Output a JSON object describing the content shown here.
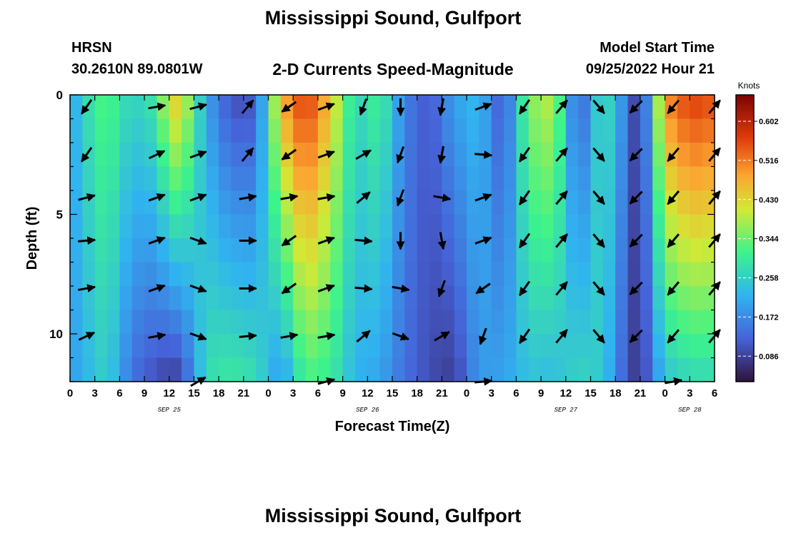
{
  "title": "Mississippi Sound, Gulfport",
  "station": "HRSN",
  "coords": "30.2610N  89.0801W",
  "subtitle": "2-D Currents Speed-Magnitude",
  "model_start_label": "Model Start Time",
  "model_start_value": "09/25/2022 Hour 21",
  "footer_title": "Mississippi Sound, Gulfport",
  "chart_data": {
    "type": "heatmap",
    "xlabel": "Forecast Time(Z)",
    "ylabel": "Depth (ft)",
    "x_ticks": [
      "0",
      "3",
      "6",
      "9",
      "12",
      "15",
      "18",
      "21",
      "0",
      "3",
      "6",
      "9",
      "12",
      "15",
      "18",
      "21",
      "0",
      "3",
      "6",
      "9",
      "12",
      "15",
      "18",
      "21",
      "0",
      "3",
      "6"
    ],
    "date_labels": [
      {
        "label": "SEP 25",
        "tick_index": 4
      },
      {
        "label": "SEP 26",
        "tick_index": 12
      },
      {
        "label": "SEP 27",
        "tick_index": 20
      },
      {
        "label": "SEP 28",
        "tick_index": 25
      }
    ],
    "y_ticks": [
      "0",
      "5",
      "10"
    ],
    "ylim": [
      0,
      12
    ],
    "y_inverted": true,
    "colorbar": {
      "unit": "Knots",
      "range": [
        0.03,
        0.66
      ],
      "ticks": [
        "0.602",
        "0.516",
        "0.430",
        "0.344",
        "0.258",
        "0.172",
        "0.086"
      ],
      "tick_values": [
        0.602,
        0.516,
        0.43,
        0.344,
        0.258,
        0.172,
        0.086
      ]
    },
    "colors": {
      "scale": [
        "#30123b",
        "#3e9bfe",
        "#46f884",
        "#e1dd37",
        "#f05b12",
        "#7a0403"
      ]
    },
    "time_step_hours": 1.5,
    "depths_ft": [
      0,
      1,
      2,
      3,
      4,
      5,
      6,
      7,
      8,
      9,
      10,
      11,
      12
    ],
    "column_speed_profiles": [
      {
        "hour": 0,
        "surface": 0.2,
        "bottom": 0.19
      },
      {
        "hour": 3,
        "surface": 0.31,
        "bottom": 0.24
      },
      {
        "hour": 4.5,
        "surface": 0.33,
        "bottom": 0.26
      },
      {
        "hour": 7.5,
        "surface": 0.26,
        "bottom": 0.14
      },
      {
        "hour": 10.5,
        "surface": 0.3,
        "bottom": 0.1
      },
      {
        "hour": 12,
        "surface": 0.44,
        "bottom": 0.08
      },
      {
        "hour": 13.5,
        "surface": 0.44,
        "bottom": 0.09
      },
      {
        "hour": 16.5,
        "surface": 0.2,
        "bottom": 0.28
      },
      {
        "hour": 19.5,
        "surface": 0.1,
        "bottom": 0.3
      },
      {
        "hour": 22.5,
        "surface": 0.11,
        "bottom": 0.28
      },
      {
        "hour": 25.5,
        "surface": 0.47,
        "bottom": 0.18
      },
      {
        "hour": 28.5,
        "surface": 0.58,
        "bottom": 0.32
      },
      {
        "hour": 31.5,
        "surface": 0.45,
        "bottom": 0.3
      },
      {
        "hour": 34.5,
        "surface": 0.26,
        "bottom": 0.22
      },
      {
        "hour": 37.5,
        "surface": 0.32,
        "bottom": 0.2
      },
      {
        "hour": 40.5,
        "surface": 0.16,
        "bottom": 0.14
      },
      {
        "hour": 43.5,
        "surface": 0.11,
        "bottom": 0.1
      },
      {
        "hour": 46.5,
        "surface": 0.2,
        "bottom": 0.08
      },
      {
        "hour": 49.5,
        "surface": 0.23,
        "bottom": 0.19
      },
      {
        "hour": 52.5,
        "surface": 0.1,
        "bottom": 0.2
      },
      {
        "hour": 55.5,
        "surface": 0.36,
        "bottom": 0.24
      },
      {
        "hour": 58.5,
        "surface": 0.4,
        "bottom": 0.23
      },
      {
        "hour": 61.5,
        "surface": 0.1,
        "bottom": 0.27
      },
      {
        "hour": 64.5,
        "surface": 0.3,
        "bottom": 0.25
      },
      {
        "hour": 67.5,
        "surface": 0.15,
        "bottom": 0.1
      },
      {
        "hour": 69,
        "surface": 0.05,
        "bottom": 0.07
      },
      {
        "hour": 72,
        "surface": 0.5,
        "bottom": 0.24
      },
      {
        "hour": 75,
        "surface": 0.57,
        "bottom": 0.27
      },
      {
        "hour": 78,
        "surface": 0.55,
        "bottom": 0.27
      }
    ],
    "vector_times_hours": [
      2,
      10.5,
      15.5,
      21.5,
      26.5,
      31,
      35.5,
      40,
      45,
      50,
      55,
      59.5,
      64,
      68.5,
      73,
      78
    ],
    "vector_depths_ft": [
      0.5,
      2.5,
      4.3,
      6.1,
      8.1,
      10.1,
      12
    ],
    "vector_direction_deg": [
      [
        215,
        80,
        75,
        40,
        235,
        70,
        200,
        180,
        190,
        70,
        215,
        40,
        140,
        225,
        220,
        40
      ],
      [
        215,
        65,
        70,
        40,
        235,
        70,
        60,
        200,
        190,
        95,
        215,
        40,
        140,
        225,
        220,
        40
      ],
      [
        75,
        70,
        70,
        80,
        80,
        80,
        50,
        200,
        100,
        70,
        215,
        40,
        140,
        225,
        220,
        40
      ],
      [
        85,
        70,
        110,
        90,
        235,
        70,
        95,
        180,
        170,
        70,
        215,
        40,
        140,
        225,
        220,
        40
      ],
      [
        80,
        70,
        110,
        90,
        235,
        70,
        95,
        100,
        200,
        235,
        215,
        40,
        140,
        225,
        220,
        40
      ],
      [
        65,
        80,
        110,
        85,
        80,
        80,
        50,
        110,
        60,
        200,
        215,
        40,
        140,
        225,
        220,
        40
      ],
      [
        0,
        0,
        60,
        0,
        0,
        75,
        0,
        0,
        0,
        85,
        0,
        0,
        0,
        0,
        80,
        0
      ]
    ]
  }
}
